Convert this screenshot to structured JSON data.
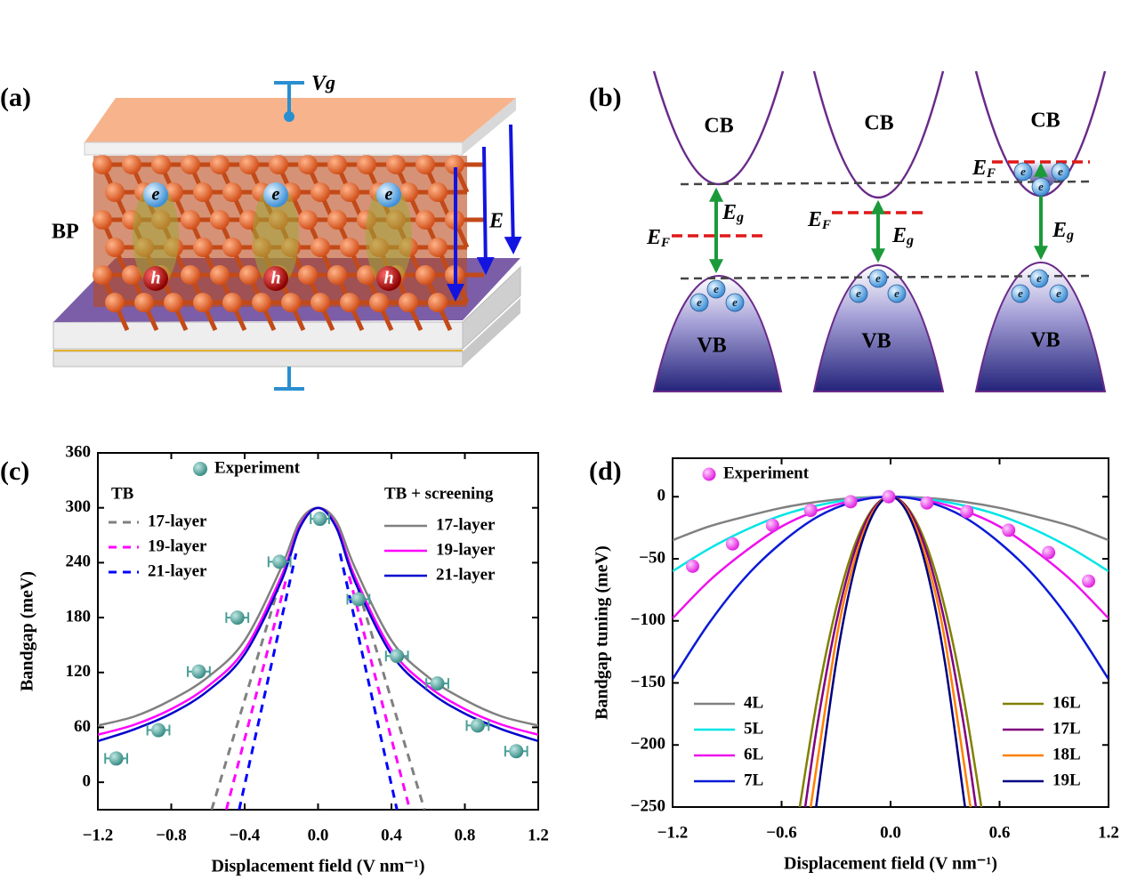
{
  "panel_labels": [
    "(a)",
    "(b)",
    "(c)",
    "(d)"
  ],
  "diagram_a": {
    "gate_symbol": "V",
    "gate_subscript": "g",
    "material": "BP",
    "electron": "e",
    "hole": "h",
    "field": "E"
  },
  "diagram_b": {
    "conduction_band": "CB",
    "valence_band": "VB",
    "electron": "e",
    "gap_symbol": "E",
    "gap_subscript": "g",
    "fermi_symbol": "E",
    "fermi_subscript": "F"
  },
  "chart_data": [
    {
      "type": "line",
      "x_label": "Displacement field (V nm⁻¹)",
      "y_label": "Bandgap (meV)",
      "xlim": [
        -1.2,
        1.2
      ],
      "ylim": [
        -30,
        360
      ],
      "xticks": [
        {
          "value": -1.2,
          "label": "−1.2"
        },
        {
          "value": -0.8,
          "label": "−0.8"
        },
        {
          "value": -0.4,
          "label": "−0.4"
        },
        {
          "value": 0,
          "label": "0.0"
        },
        0.4,
        0.8,
        1.2
      ],
      "yticks": [
        0,
        60,
        120,
        180,
        240,
        300,
        360
      ],
      "legend_titles": [
        "TB",
        "TB + screening"
      ],
      "experiment": {
        "name": "Experiment",
        "color": "#4a9e98",
        "x": [
          -1.1,
          -0.87,
          -0.65,
          -0.44,
          -0.21,
          0.01,
          0.22,
          0.43,
          0.65,
          0.87,
          1.08
        ],
        "values": [
          26,
          57,
          121,
          180,
          241,
          288,
          200,
          138,
          108,
          62,
          34
        ],
        "xerr": [
          0.06,
          0.06,
          0.06,
          0.06,
          0.06,
          0.05,
          0.06,
          0.06,
          0.06,
          0.06,
          0.06
        ]
      },
      "series": [
        {
          "name": "17-layer",
          "color": "#808080",
          "dashed": true,
          "x": [
            -0.58,
            -0.22,
            0,
            0.22,
            0.58
          ],
          "values": [
            -30,
            210,
            null,
            210,
            -30
          ]
        },
        {
          "name": "19-layer",
          "color": "#ff00ff",
          "dashed": true,
          "x": [
            -0.5,
            -0.17,
            0,
            0.17,
            0.5
          ],
          "values": [
            -30,
            225,
            null,
            225,
            -30
          ]
        },
        {
          "name": "21-layer",
          "color": "#0000ff",
          "dashed": true,
          "x": [
            -0.43,
            -0.12,
            0,
            0.12,
            0.43
          ],
          "values": [
            -30,
            250,
            null,
            250,
            -30
          ]
        },
        {
          "name": "17-layer",
          "color": "#808080",
          "dashed": false,
          "x": [
            -1.2,
            -1.0,
            -0.8,
            -0.6,
            -0.4,
            -0.2,
            -0.1,
            0,
            0.1,
            0.2,
            0.4,
            0.6,
            0.8,
            1.0,
            1.2
          ],
          "values": [
            62,
            72,
            90,
            115,
            155,
            235,
            285,
            300,
            285,
            235,
            155,
            115,
            90,
            72,
            62
          ]
        },
        {
          "name": "19-layer",
          "color": "#ff00ff",
          "dashed": false,
          "x": [
            -1.2,
            -1.0,
            -0.8,
            -0.6,
            -0.4,
            -0.2,
            -0.1,
            0,
            0.1,
            0.2,
            0.4,
            0.6,
            0.8,
            1.0,
            1.2
          ],
          "values": [
            52,
            63,
            80,
            105,
            145,
            225,
            280,
            300,
            280,
            225,
            145,
            105,
            80,
            63,
            52
          ]
        },
        {
          "name": "21-layer",
          "color": "#0000cc",
          "dashed": false,
          "x": [
            -1.2,
            -1.0,
            -0.8,
            -0.6,
            -0.4,
            -0.2,
            -0.1,
            0,
            0.1,
            0.2,
            0.4,
            0.6,
            0.8,
            1.0,
            1.2
          ],
          "values": [
            45,
            58,
            75,
            100,
            140,
            220,
            278,
            300,
            278,
            220,
            140,
            100,
            75,
            58,
            45
          ]
        }
      ]
    },
    {
      "type": "line",
      "x_label": "Displacement field (V nm⁻¹)",
      "y_label": "Bandgap tuning (meV)",
      "xlim": [
        -1.2,
        1.2
      ],
      "ylim": [
        -250,
        31
      ],
      "xticks": [
        {
          "value": -1.2,
          "label": "−1.2"
        },
        {
          "value": -0.6,
          "label": "−0.6"
        },
        {
          "value": 0,
          "label": "0.0"
        },
        0.6,
        1.2
      ],
      "yticks": [
        {
          "value": -250,
          "label": "−250"
        },
        {
          "value": -200,
          "label": "−200"
        },
        {
          "value": -150,
          "label": "−150"
        },
        {
          "value": -100,
          "label": "−100"
        },
        {
          "value": -50,
          "label": "−50"
        },
        0
      ],
      "experiment": {
        "name": "Experiment",
        "color": "#ff44ff",
        "x": [
          -1.09,
          -0.87,
          -0.65,
          -0.44,
          -0.22,
          -0.01,
          0.2,
          0.42,
          0.65,
          0.87,
          1.09
        ],
        "values": [
          -56,
          -38,
          -23,
          -11,
          -4,
          0,
          -5,
          -12,
          -27,
          -45,
          -68
        ]
      },
      "series": [
        {
          "name": "4L",
          "color": "#808080",
          "dashed": false,
          "x": [
            -1.2,
            -1.0,
            -0.8,
            -0.6,
            -0.4,
            -0.2,
            0,
            0.2,
            0.4,
            0.6,
            0.8,
            1.0,
            1.2
          ],
          "values": [
            -35,
            -24,
            -16,
            -9,
            -4,
            -1,
            0,
            -1,
            -4,
            -9,
            -16,
            -24,
            -35
          ]
        },
        {
          "name": "5L",
          "color": "#00e5e5",
          "dashed": false,
          "x": [
            -1.2,
            -1.0,
            -0.8,
            -0.6,
            -0.4,
            -0.2,
            0,
            0.2,
            0.4,
            0.6,
            0.8,
            1.0,
            1.2
          ],
          "values": [
            -60,
            -42,
            -27,
            -15,
            -7,
            -2,
            0,
            -2,
            -7,
            -15,
            -27,
            -42,
            -60
          ]
        },
        {
          "name": "6L",
          "color": "#ee11ee",
          "dashed": false,
          "x": [
            -1.2,
            -1.0,
            -0.8,
            -0.6,
            -0.4,
            -0.2,
            0,
            0.2,
            0.4,
            0.6,
            0.8,
            1.0,
            1.2
          ],
          "values": [
            -98,
            -68,
            -44,
            -24,
            -11,
            -3,
            0,
            -3,
            -11,
            -24,
            -44,
            -68,
            -98
          ]
        },
        {
          "name": "7L",
          "color": "#0a1ad6",
          "dashed": false,
          "x": [
            -1.2,
            -1.0,
            -0.8,
            -0.6,
            -0.4,
            -0.2,
            0,
            0.2,
            0.4,
            0.6,
            0.8,
            1.0,
            1.2
          ],
          "values": [
            -147,
            -102,
            -65,
            -37,
            -16,
            -4,
            0,
            -4,
            -16,
            -37,
            -65,
            -102,
            -147
          ]
        },
        {
          "name": "16L",
          "color": "#808000",
          "dashed": false,
          "x": [
            -0.5,
            -0.4,
            -0.3,
            -0.2,
            -0.1,
            0,
            0.1,
            0.2,
            0.3,
            0.4,
            0.5
          ],
          "values": [
            -250,
            -160,
            -90,
            -40,
            -10,
            0,
            -10,
            -40,
            -90,
            -160,
            -250
          ]
        },
        {
          "name": "17L",
          "color": "#800080",
          "dashed": false,
          "x": [
            -0.47,
            -0.4,
            -0.3,
            -0.2,
            -0.1,
            0,
            0.1,
            0.2,
            0.3,
            0.4,
            0.47
          ],
          "values": [
            -250,
            -181,
            -102,
            -45,
            -11,
            0,
            -11,
            -45,
            -102,
            -181,
            -250
          ]
        },
        {
          "name": "18L",
          "color": "#ff8000",
          "dashed": false,
          "x": [
            -0.44,
            -0.3,
            -0.2,
            -0.1,
            0,
            0.1,
            0.2,
            0.3,
            0.44
          ],
          "values": [
            -250,
            -116,
            -52,
            -13,
            0,
            -13,
            -52,
            -116,
            -250
          ]
        },
        {
          "name": "19L",
          "color": "#000080",
          "dashed": false,
          "x": [
            -0.41,
            -0.3,
            -0.2,
            -0.1,
            0,
            0.1,
            0.2,
            0.3,
            0.41
          ],
          "values": [
            -250,
            -134,
            -59,
            -15,
            0,
            -15,
            -59,
            -134,
            -250
          ]
        }
      ]
    }
  ]
}
